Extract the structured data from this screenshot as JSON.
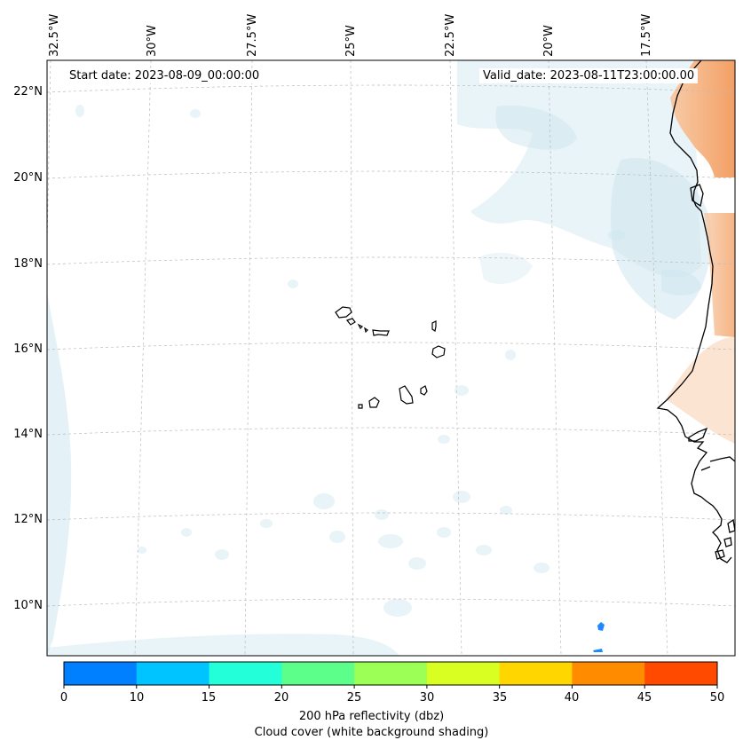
{
  "map": {
    "start_date": "Start date: 2023-08-09_00:00:00",
    "valid_date": "Valid_date: 2023-08-11T23:00:00.00",
    "lon_labels": [
      "32.5°W",
      "30°W",
      "27.5°W",
      "25°W",
      "22.5°W",
      "20°W",
      "17.5°W"
    ],
    "lat_labels": [
      "22°N",
      "20°N",
      "18°N",
      "16°N",
      "14°N",
      "12°N",
      "10°N"
    ]
  },
  "colorbar": {
    "ticks": [
      "0",
      "10",
      "15",
      "20",
      "25",
      "30",
      "35",
      "40",
      "45",
      "50"
    ],
    "colors": [
      "#007fff",
      "#00c4ff",
      "#22ffd9",
      "#5cff8a",
      "#9bff55",
      "#d9ff22",
      "#ffd600",
      "#ff8c00",
      "#ff4a00"
    ],
    "label_line1": "200 hPa reflectivity (dbz)",
    "label_line2": "Cloud cover (white background shading)"
  },
  "styles": {
    "cloud_color": "#cde6ee",
    "land_warm_color": "#f3a36a",
    "coast_color": "#000000",
    "radar_echo_color": "#1e88ff"
  }
}
